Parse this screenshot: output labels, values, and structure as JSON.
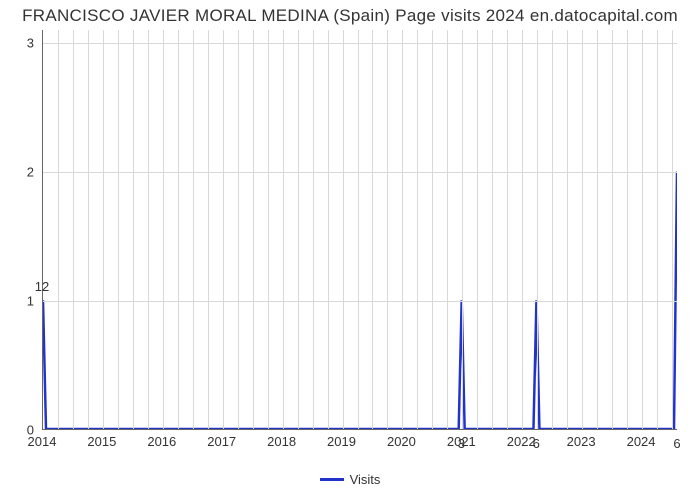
{
  "chart": {
    "type": "line",
    "title": "FRANCISCO JAVIER MORAL MEDINA (Spain) Page visits 2024 en.datocapital.com",
    "title_fontsize": 17,
    "title_color": "#333333",
    "background_color": "#ffffff",
    "grid_color": "#d8d8d8",
    "axis_color": "#666666",
    "line_color": "#2233cc",
    "line_width": 2.5,
    "x_axis": {
      "min": 2014,
      "max": 2024.6,
      "ticks": [
        2014,
        2015,
        2016,
        2017,
        2018,
        2019,
        2020,
        2021,
        2022,
        2023,
        2024
      ],
      "tick_labels": [
        "2014",
        "2015",
        "2016",
        "2017",
        "2018",
        "2019",
        "2020",
        "2021",
        "2022",
        "2023",
        "2024"
      ],
      "minor_interval": 0.25,
      "label_fontsize": 13
    },
    "y_axis": {
      "min": 0,
      "max": 3.1,
      "ticks": [
        0,
        1,
        2,
        3
      ],
      "tick_labels": [
        "0",
        "1",
        "2",
        "3"
      ],
      "label_fontsize": 13
    },
    "series": {
      "name": "Visits",
      "points": [
        {
          "x": 2014.0,
          "y": 1.0
        },
        {
          "x": 2014.05,
          "y": 0.0
        },
        {
          "x": 2020.95,
          "y": 0.0
        },
        {
          "x": 2021.0,
          "y": 1.0
        },
        {
          "x": 2021.05,
          "y": 0.0
        },
        {
          "x": 2022.2,
          "y": 0.0
        },
        {
          "x": 2022.25,
          "y": 1.0
        },
        {
          "x": 2022.3,
          "y": 0.0
        },
        {
          "x": 2024.55,
          "y": 0.0
        },
        {
          "x": 2024.6,
          "y": 2.0
        }
      ]
    },
    "data_labels": [
      {
        "x": 2014.0,
        "y": 1.0,
        "text": "12",
        "dy": -14
      },
      {
        "x": 2021.0,
        "y": 0.0,
        "text": "3",
        "dy": 14
      },
      {
        "x": 2022.25,
        "y": 0.0,
        "text": "6",
        "dy": 14
      },
      {
        "x": 2024.6,
        "y": 0.0,
        "text": "6",
        "dy": 14
      }
    ],
    "legend": {
      "label": "Visits"
    }
  }
}
